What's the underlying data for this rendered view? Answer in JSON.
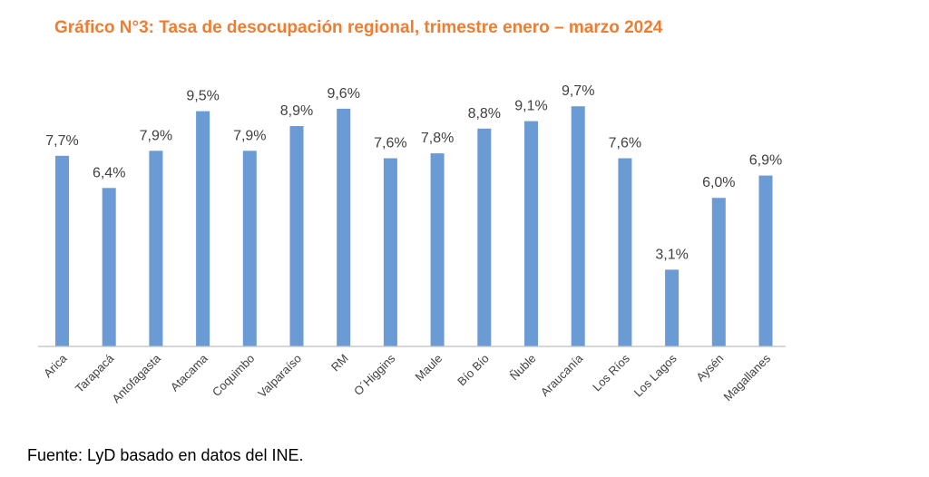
{
  "title": "Gráfico N°3: Tasa de desocupación regional, trimestre enero – marzo 2024",
  "source": "Fuente: LyD basado en datos del INE.",
  "colors": {
    "bar": "#6a9bd4",
    "title": "#ed7d31",
    "axis": "#bfbfbf",
    "text": "#404040"
  },
  "chart_data": {
    "type": "bar",
    "title": "Gráfico N°3: Tasa de desocupación regional, trimestre enero – marzo 2024",
    "xlabel": "",
    "ylabel": "",
    "ylim": [
      0,
      10
    ],
    "grid": false,
    "categories": [
      "Arica",
      "Tarapacá",
      "Antofagasta",
      "Atacama",
      "Coquimbo",
      "Valparaíso",
      "RM",
      "O´Higgins",
      "Maule",
      "Bío Bío",
      "Ñuble",
      "Araucanía",
      "Los Ríos",
      "Los Lagos",
      "Aysén",
      "Magallanes"
    ],
    "values": [
      7.7,
      6.4,
      7.9,
      9.5,
      7.9,
      8.9,
      9.6,
      7.6,
      7.8,
      8.8,
      9.1,
      9.7,
      7.6,
      3.1,
      6.0,
      6.9
    ],
    "data_labels": [
      "7,7%",
      "6,4%",
      "7,9%",
      "9,5%",
      "7,9%",
      "8,9%",
      "9,6%",
      "7,6%",
      "7,8%",
      "8,8%",
      "9,1%",
      "9,7%",
      "7,6%",
      "3,1%",
      "6,0%",
      "6,9%"
    ]
  }
}
